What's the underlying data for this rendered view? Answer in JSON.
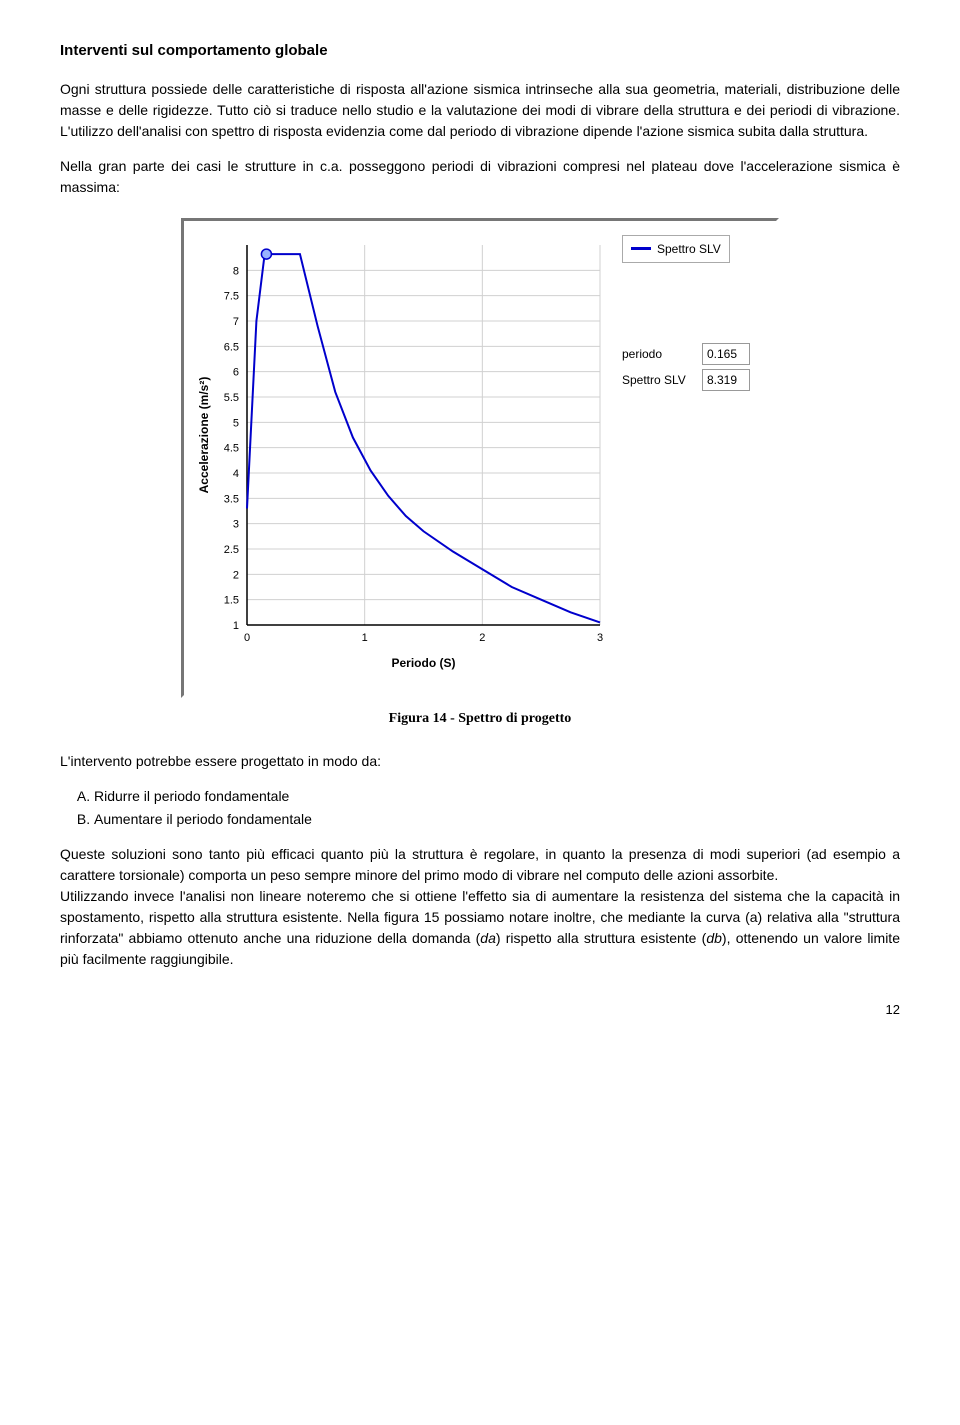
{
  "heading": "Interventi sul comportamento globale",
  "para1": "Ogni struttura possiede delle caratteristiche di risposta all'azione sismica intrinseche alla sua geometria, materiali, distribuzione delle masse e delle rigidezze. Tutto ciò si traduce nello studio e la valutazione dei modi di vibrare della struttura e dei periodi di vibrazione. L'utilizzo dell'analisi con spettro di risposta evidenzia come dal periodo di vibrazione dipende l'azione sismica subita dalla struttura.",
  "para2": "Nella gran parte dei casi le strutture in c.a. posseggono periodi di vibrazioni compresi nel plateau dove l'accelerazione sismica è massima:",
  "chart": {
    "type": "line",
    "title": "",
    "xlabel": "Periodo (S)",
    "ylabel": "Accelerazione (m/s²)",
    "x_values": [
      0,
      0.08,
      0.15,
      0.165,
      0.3,
      0.45,
      0.6,
      0.75,
      0.9,
      1.05,
      1.2,
      1.35,
      1.5,
      1.75,
      2.0,
      2.25,
      2.5,
      2.75,
      3.0
    ],
    "y_values": [
      3.3,
      7.0,
      8.32,
      8.32,
      8.32,
      8.32,
      6.9,
      5.6,
      4.7,
      4.05,
      3.55,
      3.15,
      2.85,
      2.45,
      2.1,
      1.75,
      1.5,
      1.25,
      1.05
    ],
    "marker_x": 0.165,
    "marker_y": 8.32,
    "xlim": [
      0,
      3
    ],
    "ylim": [
      1,
      8.5
    ],
    "xticks": [
      0,
      1,
      2,
      3
    ],
    "yticks": [
      1,
      1.5,
      2,
      2.5,
      3,
      3.5,
      4,
      4.5,
      5,
      5.5,
      6,
      6.5,
      7,
      7.5,
      8
    ],
    "line_color": "#0000cc",
    "marker_color": "#0000cc",
    "marker_fill": "#99b3ff",
    "grid_color": "#d0d0d0",
    "axis_color": "#000000",
    "text_color": "#000000",
    "axis_fontsize": 11,
    "label_fontsize": 12,
    "line_width": 2,
    "marker_radius": 5
  },
  "legend_label": "Spettro SLV",
  "readout": {
    "periodo_label": "periodo",
    "periodo_value": "0.165",
    "spettro_label": "Spettro SLV",
    "spettro_value": "8.319"
  },
  "caption": "Figura 14 - Spettro di progetto",
  "para3": "L'intervento potrebbe essere progettato in modo da:",
  "list": {
    "a": "Ridurre il periodo fondamentale",
    "b": "Aumentare il periodo fondamentale"
  },
  "para4_prefix": "Queste soluzioni sono tanto più efficaci quanto più la struttura è regolare, in quanto la presenza di modi superiori (ad esempio a carattere torsionale) comporta un peso sempre minore del primo modo di vibrare nel computo delle azioni assorbite.",
  "para4_rest": "Utilizzando invece l'analisi non lineare noteremo che si ottiene l'effetto sia di aumentare la resistenza del sistema che la capacità in spostamento, rispetto alla struttura esistente. Nella figura 15 possiamo notare inoltre, che mediante la curva (a) relativa alla \"struttura rinforzata\" abbiamo ottenuto anche una riduzione della domanda (",
  "para4_da": "da",
  "para4_mid": ") rispetto alla struttura esistente (",
  "para4_db": "db",
  "para4_end": "), ottenendo un valore limite più facilmente raggiungibile.",
  "page_number": "12"
}
